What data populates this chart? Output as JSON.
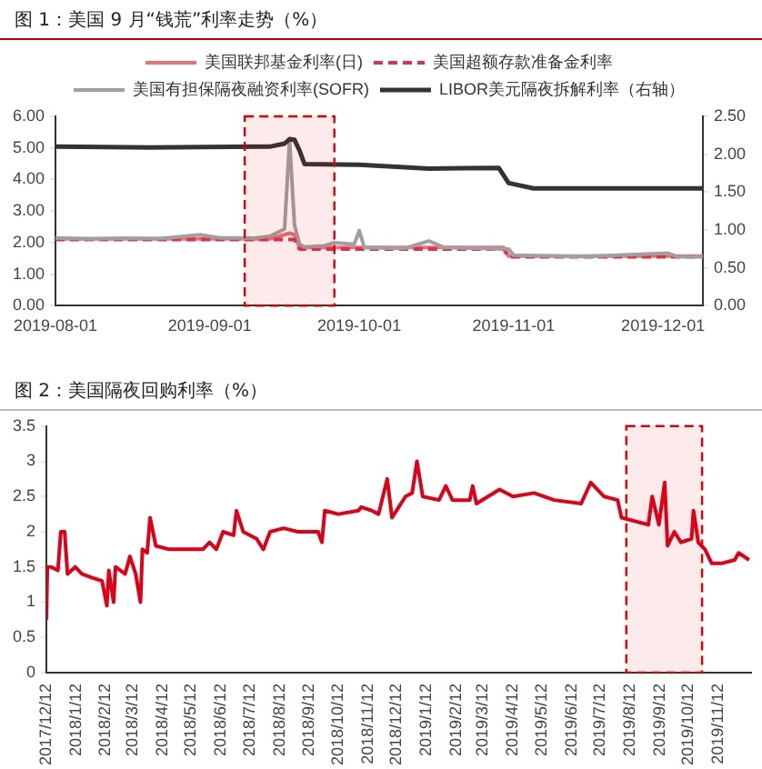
{
  "chart_data": [
    {
      "type": "line",
      "title": "图 1：美国 9 月“钱荒”利率走势（%）",
      "legend": "top",
      "grid": false,
      "xlim": [
        "2019-08-01",
        "2019-12-09"
      ],
      "xticks": [
        "2019-08-01",
        "2019-09-01",
        "2019-10-01",
        "2019-11-01",
        "2019-12-01"
      ],
      "ylim": [
        0,
        6
      ],
      "yticks": [
        {
          "value": 0,
          "label": "0.00"
        },
        {
          "value": 1,
          "label": "1.00"
        },
        {
          "value": 2,
          "label": "2.00"
        },
        {
          "value": 3,
          "label": "3.00"
        },
        {
          "value": 4,
          "label": "4.00"
        },
        {
          "value": 5,
          "label": "5.00"
        },
        {
          "value": 6,
          "label": "6.00"
        }
      ],
      "y2lim": [
        0,
        2.5
      ],
      "y2ticks": [
        {
          "value": 0,
          "label": "0.00"
        },
        {
          "value": 0.5,
          "label": "0.50"
        },
        {
          "value": 1,
          "label": "1.00"
        },
        {
          "value": 1.5,
          "label": "1.50"
        },
        {
          "value": 2,
          "label": "2.00"
        },
        {
          "value": 2.5,
          "label": "2.50"
        }
      ],
      "bands": [
        {
          "axis": "x",
          "from": "2019-09-08",
          "to": "2019-09-26",
          "color": "#e00000"
        }
      ],
      "series": [
        {
          "name": "美国联邦基金利率(日)",
          "color": "#e8707a",
          "x": [
            "2019-08-01",
            "2019-09-13",
            "2019-09-16",
            "2019-09-17",
            "2019-09-18",
            "2019-09-19",
            "2019-10-30",
            "2019-10-31",
            "2019-12-09"
          ],
          "values": [
            2.12,
            2.12,
            2.25,
            2.3,
            2.25,
            1.85,
            1.85,
            1.57,
            1.57
          ]
        },
        {
          "name": "美国超额存款准备金利率",
          "color": "#e0304a",
          "line_style": "dashed",
          "x": [
            "2019-08-01",
            "2019-09-18",
            "2019-09-19",
            "2019-10-30",
            "2019-10-31",
            "2019-12-09"
          ],
          "values": [
            2.1,
            2.1,
            1.8,
            1.8,
            1.55,
            1.55
          ]
        },
        {
          "name": "美国有担保隔夜融资利率(SOFR)",
          "color": "#a0a0a0",
          "x": [
            "2019-08-01",
            "2019-08-08",
            "2019-08-15",
            "2019-08-22",
            "2019-08-30",
            "2019-09-03",
            "2019-09-10",
            "2019-09-13",
            "2019-09-16",
            "2019-09-17",
            "2019-09-18",
            "2019-09-19",
            "2019-09-20",
            "2019-09-24",
            "2019-09-26",
            "2019-09-30",
            "2019-10-01",
            "2019-10-02",
            "2019-10-10",
            "2019-10-15",
            "2019-10-18",
            "2019-10-31",
            "2019-11-01",
            "2019-11-15",
            "2019-12-02",
            "2019-12-04",
            "2019-12-09"
          ],
          "values": [
            2.15,
            2.12,
            2.14,
            2.13,
            2.25,
            2.15,
            2.14,
            2.2,
            2.43,
            5.25,
            2.55,
            1.95,
            1.86,
            1.9,
            2.0,
            1.95,
            2.38,
            1.85,
            1.82,
            2.05,
            1.85,
            1.8,
            1.6,
            1.56,
            1.67,
            1.55,
            1.55
          ]
        },
        {
          "name": "LIBOR美元隔夜拆解利率（右轴）",
          "color": "#333333",
          "axis": "y2",
          "x": [
            "2019-08-01",
            "2019-08-20",
            "2019-09-13",
            "2019-09-16",
            "2019-09-17",
            "2019-09-18",
            "2019-09-19",
            "2019-09-20",
            "2019-10-01",
            "2019-10-15",
            "2019-10-29",
            "2019-10-31",
            "2019-11-05",
            "2019-12-09"
          ],
          "values": [
            2.1,
            2.09,
            2.1,
            2.14,
            2.2,
            2.19,
            2.05,
            1.87,
            1.86,
            1.81,
            1.82,
            1.62,
            1.55,
            1.55
          ]
        }
      ]
    },
    {
      "type": "line",
      "title": "图 2：美国隔夜回购利率（%）",
      "legend": false,
      "grid": false,
      "xlim": [
        "2017-12-12",
        "2019-12-16"
      ],
      "xticks": [
        {
          "value": "2017-12-12",
          "label": "2017/12/12"
        },
        {
          "value": "2018-01-12",
          "label": "2018/1/12"
        },
        {
          "value": "2018-02-12",
          "label": "2018/2/12"
        },
        {
          "value": "2018-03-12",
          "label": "2018/3/12"
        },
        {
          "value": "2018-04-12",
          "label": "2018/4/12"
        },
        {
          "value": "2018-05-12",
          "label": "2018/5/12"
        },
        {
          "value": "2018-06-12",
          "label": "2018/6/12"
        },
        {
          "value": "2018-07-12",
          "label": "2018/7/12"
        },
        {
          "value": "2018-08-12",
          "label": "2018/8/12"
        },
        {
          "value": "2018-09-12",
          "label": "2018/9/12"
        },
        {
          "value": "2018-10-12",
          "label": "2018/10/12"
        },
        {
          "value": "2018-11-12",
          "label": "2018/11/12"
        },
        {
          "value": "2018-12-12",
          "label": "2018/12/12"
        },
        {
          "value": "2019-01-12",
          "label": "2019/1/12"
        },
        {
          "value": "2019-02-12",
          "label": "2019/2/12"
        },
        {
          "value": "2019-03-12",
          "label": "2019/3/12"
        },
        {
          "value": "2019-04-12",
          "label": "2019/4/12"
        },
        {
          "value": "2019-05-12",
          "label": "2019/5/12"
        },
        {
          "value": "2019-06-12",
          "label": "2019/6/12"
        },
        {
          "value": "2019-07-12",
          "label": "2019/7/12"
        },
        {
          "value": "2019-08-12",
          "label": "2019/8/12"
        },
        {
          "value": "2019-09-12",
          "label": "2019/9/12"
        },
        {
          "value": "2019-10-12",
          "label": "2019/10/12"
        },
        {
          "value": "2019-11-12",
          "label": "2019/11/12"
        }
      ],
      "ylim": [
        0,
        3.5
      ],
      "yticks": [
        0,
        0.5,
        1,
        1.5,
        2,
        2.5,
        3,
        3.5
      ],
      "bands": [
        {
          "axis": "x",
          "from": "2019-08-08",
          "to": "2019-10-26",
          "color": "#e00000"
        }
      ],
      "series": [
        {
          "color": "#e00018",
          "x": [
            "2017-12-12",
            "2017-12-13",
            "2017-12-17",
            "2017-12-24",
            "2017-12-27",
            "2017-12-31",
            "2018-01-03",
            "2018-01-11",
            "2018-01-18",
            "2018-01-28",
            "2018-02-08",
            "2018-02-13",
            "2018-02-15",
            "2018-02-20",
            "2018-02-22",
            "2018-03-04",
            "2018-03-09",
            "2018-03-15",
            "2018-03-20",
            "2018-03-22",
            "2018-03-27",
            "2018-03-30",
            "2018-04-05",
            "2018-04-19",
            "2018-05-03",
            "2018-05-24",
            "2018-05-31",
            "2018-06-07",
            "2018-06-14",
            "2018-06-25",
            "2018-06-28",
            "2018-07-05",
            "2018-07-19",
            "2018-07-26",
            "2018-08-02",
            "2018-08-16",
            "2018-08-31",
            "2018-09-21",
            "2018-09-25",
            "2018-09-28",
            "2018-10-12",
            "2018-11-02",
            "2018-11-05",
            "2018-11-16",
            "2018-11-23",
            "2018-12-02",
            "2018-12-07",
            "2018-12-14",
            "2018-12-21",
            "2018-12-28",
            "2019-01-02",
            "2019-01-08",
            "2019-01-25",
            "2019-02-01",
            "2019-02-08",
            "2019-02-26",
            "2019-03-01",
            "2019-03-05",
            "2019-03-29",
            "2019-04-12",
            "2019-05-04",
            "2019-05-25",
            "2019-06-22",
            "2019-07-02",
            "2019-07-16",
            "2019-07-30",
            "2019-08-03",
            "2019-08-17",
            "2019-08-31",
            "2019-09-04",
            "2019-09-11",
            "2019-09-17",
            "2019-09-20",
            "2019-09-27",
            "2019-10-04",
            "2019-10-15",
            "2019-10-17",
            "2019-10-22",
            "2019-10-29",
            "2019-11-05",
            "2019-11-15",
            "2019-11-29",
            "2019-12-03",
            "2019-12-14"
          ],
          "values": [
            0.75,
            1.5,
            1.5,
            1.45,
            2.0,
            2.0,
            1.4,
            1.5,
            1.4,
            1.35,
            1.3,
            0.95,
            1.45,
            1.0,
            1.5,
            1.4,
            1.65,
            1.4,
            1.0,
            1.75,
            1.7,
            2.2,
            1.8,
            1.75,
            1.75,
            1.75,
            1.85,
            1.75,
            2.0,
            1.95,
            2.3,
            2.0,
            1.9,
            1.75,
            2.0,
            2.05,
            2.0,
            2.0,
            1.85,
            2.3,
            2.25,
            2.3,
            2.35,
            2.3,
            2.25,
            2.75,
            2.2,
            2.35,
            2.5,
            2.55,
            3.0,
            2.5,
            2.45,
            2.65,
            2.45,
            2.45,
            2.65,
            2.4,
            2.6,
            2.5,
            2.55,
            2.45,
            2.4,
            2.7,
            2.5,
            2.45,
            2.2,
            2.15,
            2.1,
            2.5,
            2.1,
            2.7,
            1.8,
            2.0,
            1.85,
            1.9,
            2.3,
            1.85,
            1.75,
            1.55,
            1.55,
            1.6,
            1.7,
            1.6
          ]
        }
      ]
    }
  ]
}
